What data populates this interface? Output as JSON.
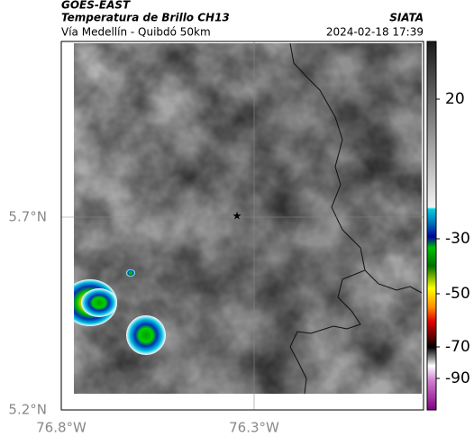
{
  "header": {
    "agency": "GOES-EAST",
    "title": "Temperatura de Brillo CH13",
    "subtitle": "Vía Medellín - Quibdó 50km",
    "source": "SIATA",
    "datetime": "2024-02-18 17:39"
  },
  "map": {
    "lat_labels": [
      "5.7°N",
      "5.2°N"
    ],
    "lon_labels": [
      "76.8°W",
      "76.3°W"
    ]
  },
  "colorbar": {
    "ticks": [
      20,
      -30,
      -50,
      -70,
      -90
    ]
  }
}
